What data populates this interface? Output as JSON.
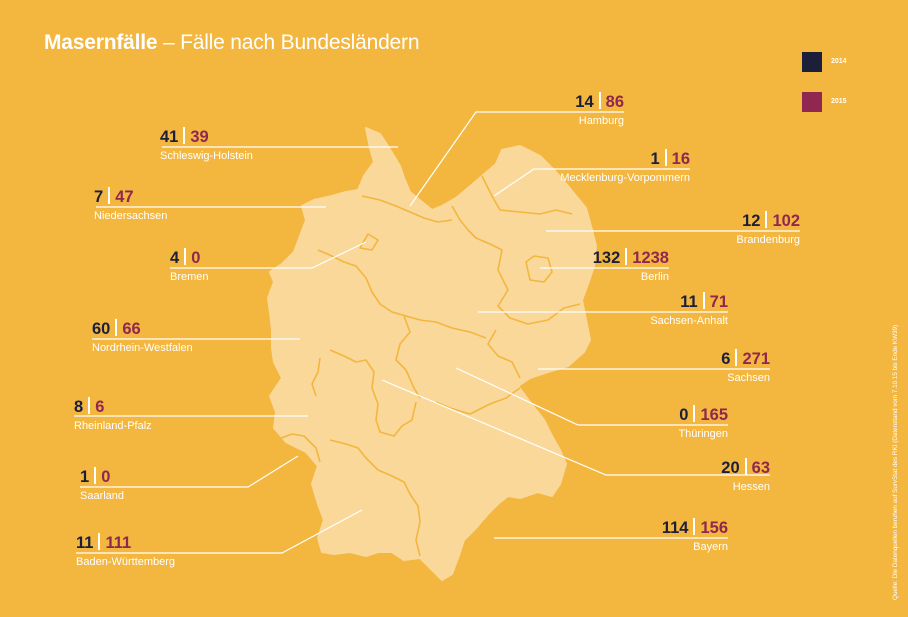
{
  "title": {
    "bold": "Masernfälle",
    "rest": " – Fälle nach Bundesländern"
  },
  "legend": [
    {
      "label": "2014",
      "color": "#1c1f3a"
    },
    {
      "label": "2015",
      "color": "#8f2750"
    }
  ],
  "colors": {
    "background": "#f3b63f",
    "map_fill": "#fad89a",
    "border": "#f3b63f",
    "lines": "#ffffff",
    "value_2014": "#1c1f3a",
    "value_2015": "#8f2750"
  },
  "regions": [
    {
      "name": "Schleswig-Holstein",
      "v2014": "41",
      "v2015": "39"
    },
    {
      "name": "Niedersachsen",
      "v2014": "7",
      "v2015": "47"
    },
    {
      "name": "Bremen",
      "v2014": "4",
      "v2015": "0"
    },
    {
      "name": "Nordrhein-Westfalen",
      "v2014": "60",
      "v2015": "66"
    },
    {
      "name": "Rheinland-Pfalz",
      "v2014": "8",
      "v2015": "6"
    },
    {
      "name": "Saarland",
      "v2014": "1",
      "v2015": "0"
    },
    {
      "name": "Baden-Württemberg",
      "v2014": "11",
      "v2015": "111"
    },
    {
      "name": "Hamburg",
      "v2014": "14",
      "v2015": "86"
    },
    {
      "name": "Mecklenburg-Vorpommern",
      "v2014": "1",
      "v2015": "16"
    },
    {
      "name": "Brandenburg",
      "v2014": "12",
      "v2015": "102"
    },
    {
      "name": "Berlin",
      "v2014": "132",
      "v2015": "1238"
    },
    {
      "name": "Sachsen-Anhalt",
      "v2014": "11",
      "v2015": "71"
    },
    {
      "name": "Sachsen",
      "v2014": "6",
      "v2015": "271"
    },
    {
      "name": "Thüringen",
      "v2014": "0",
      "v2015": "165"
    },
    {
      "name": "Hessen",
      "v2014": "20",
      "v2015": "63"
    },
    {
      "name": "Bayern",
      "v2014": "114",
      "v2015": "156"
    }
  ],
  "source": "Quelle: Die Datenquellen beruhen auf SurvStat des RKI (Datenstand vom 7.10.15 bis Ende KW39)"
}
